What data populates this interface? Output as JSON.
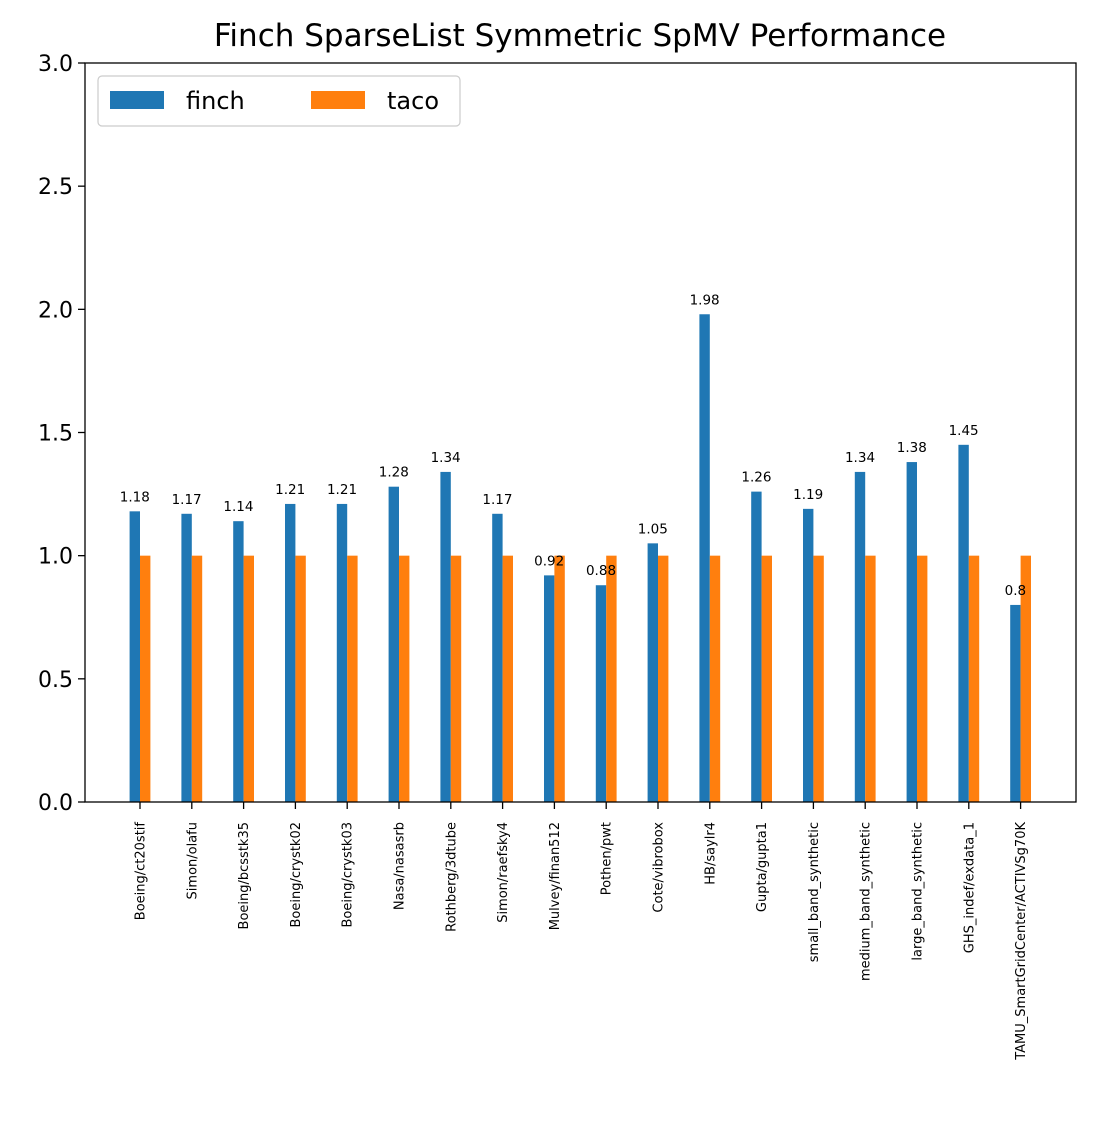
{
  "chart_data": {
    "type": "bar",
    "title": "Finch SparseList Symmetric SpMV Performance",
    "xlabel": "",
    "ylabel": "",
    "ylim": [
      0,
      3.0
    ],
    "yticks": [
      "0.0",
      "0.5",
      "1.0",
      "1.5",
      "2.0",
      "2.5",
      "3.0"
    ],
    "grid": false,
    "legend_position": "top-left",
    "categories": [
      "Boeing/ct20stif",
      "Simon/olafu",
      "Boeing/bcsstk35",
      "Boeing/crystk02",
      "Boeing/crystk03",
      "Nasa/nasasrb",
      "Rothberg/3dtube",
      "Simon/raefsky4",
      "Mulvey/finan512",
      "Pothen/pwt",
      "Cote/vibrobox",
      "HB/saylr4",
      "Gupta/gupta1",
      "small_band_synthetic",
      "medium_band_synthetic",
      "large_band_synthetic",
      "GHS_indef/exdata_1",
      "TAMU_SmartGridCenter/ACTIVSg70K"
    ],
    "series": [
      {
        "name": "finch",
        "color": "#1f77b4",
        "values": [
          1.18,
          1.17,
          1.14,
          1.21,
          1.21,
          1.28,
          1.34,
          1.17,
          0.92,
          0.88,
          1.05,
          1.98,
          1.26,
          1.19,
          1.34,
          1.38,
          1.45,
          0.8
        ],
        "labels": [
          "1.18",
          "1.17",
          "1.14",
          "1.21",
          "1.21",
          "1.28",
          "1.34",
          "1.17",
          "0.92",
          "0.88",
          "1.05",
          "1.98",
          "1.26",
          "1.19",
          "1.34",
          "1.38",
          "1.45",
          "0.8"
        ]
      },
      {
        "name": "taco",
        "color": "#ff7f0e",
        "values": [
          1,
          1,
          1,
          1,
          1,
          1,
          1,
          1,
          1,
          1,
          1,
          1,
          1,
          1,
          1,
          1,
          1,
          1
        ]
      }
    ]
  }
}
